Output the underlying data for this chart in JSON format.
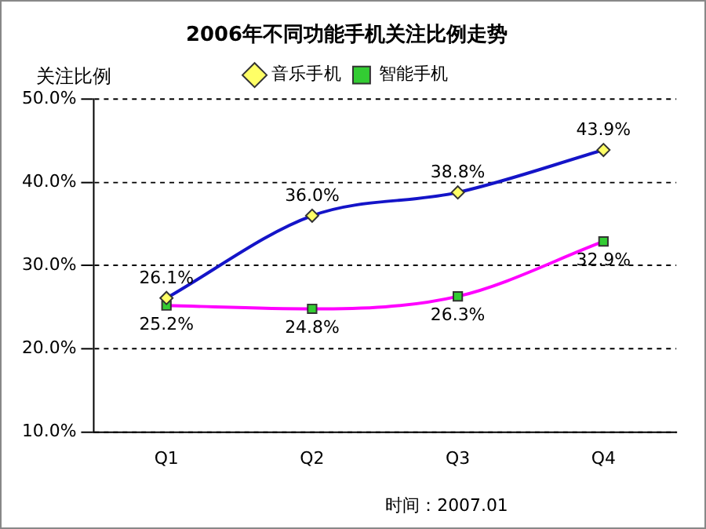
{
  "chart_data": {
    "type": "line",
    "title": "2006年不同功能手机关注比例走势",
    "ylabel": "关注比例",
    "categories": [
      "Q1",
      "Q2",
      "Q3",
      "Q4"
    ],
    "series": [
      {
        "name": "音乐手机",
        "color": "#1414c8",
        "marker": "diamond",
        "values": [
          26.1,
          36.0,
          38.8,
          43.9
        ],
        "value_labels": [
          "26.1%",
          "36.0%",
          "38.8%",
          "43.9%"
        ]
      },
      {
        "name": "智能手机",
        "color": "#ff00ff",
        "marker": "square",
        "values": [
          25.2,
          24.8,
          26.3,
          32.9
        ],
        "value_labels": [
          "25.2%",
          "24.8%",
          "26.3%",
          "32.9%"
        ]
      }
    ],
    "ylim": [
      10,
      50
    ],
    "yticks": [
      {
        "value": 10,
        "label": "10.0%"
      },
      {
        "value": 20,
        "label": "20.0%"
      },
      {
        "value": 30,
        "label": "30.0%"
      },
      {
        "value": 40,
        "label": "40.0%"
      },
      {
        "value": 50,
        "label": "50.0%"
      }
    ],
    "grid": "y",
    "legend": "top",
    "annotations": [
      "时间：2007.01"
    ]
  }
}
